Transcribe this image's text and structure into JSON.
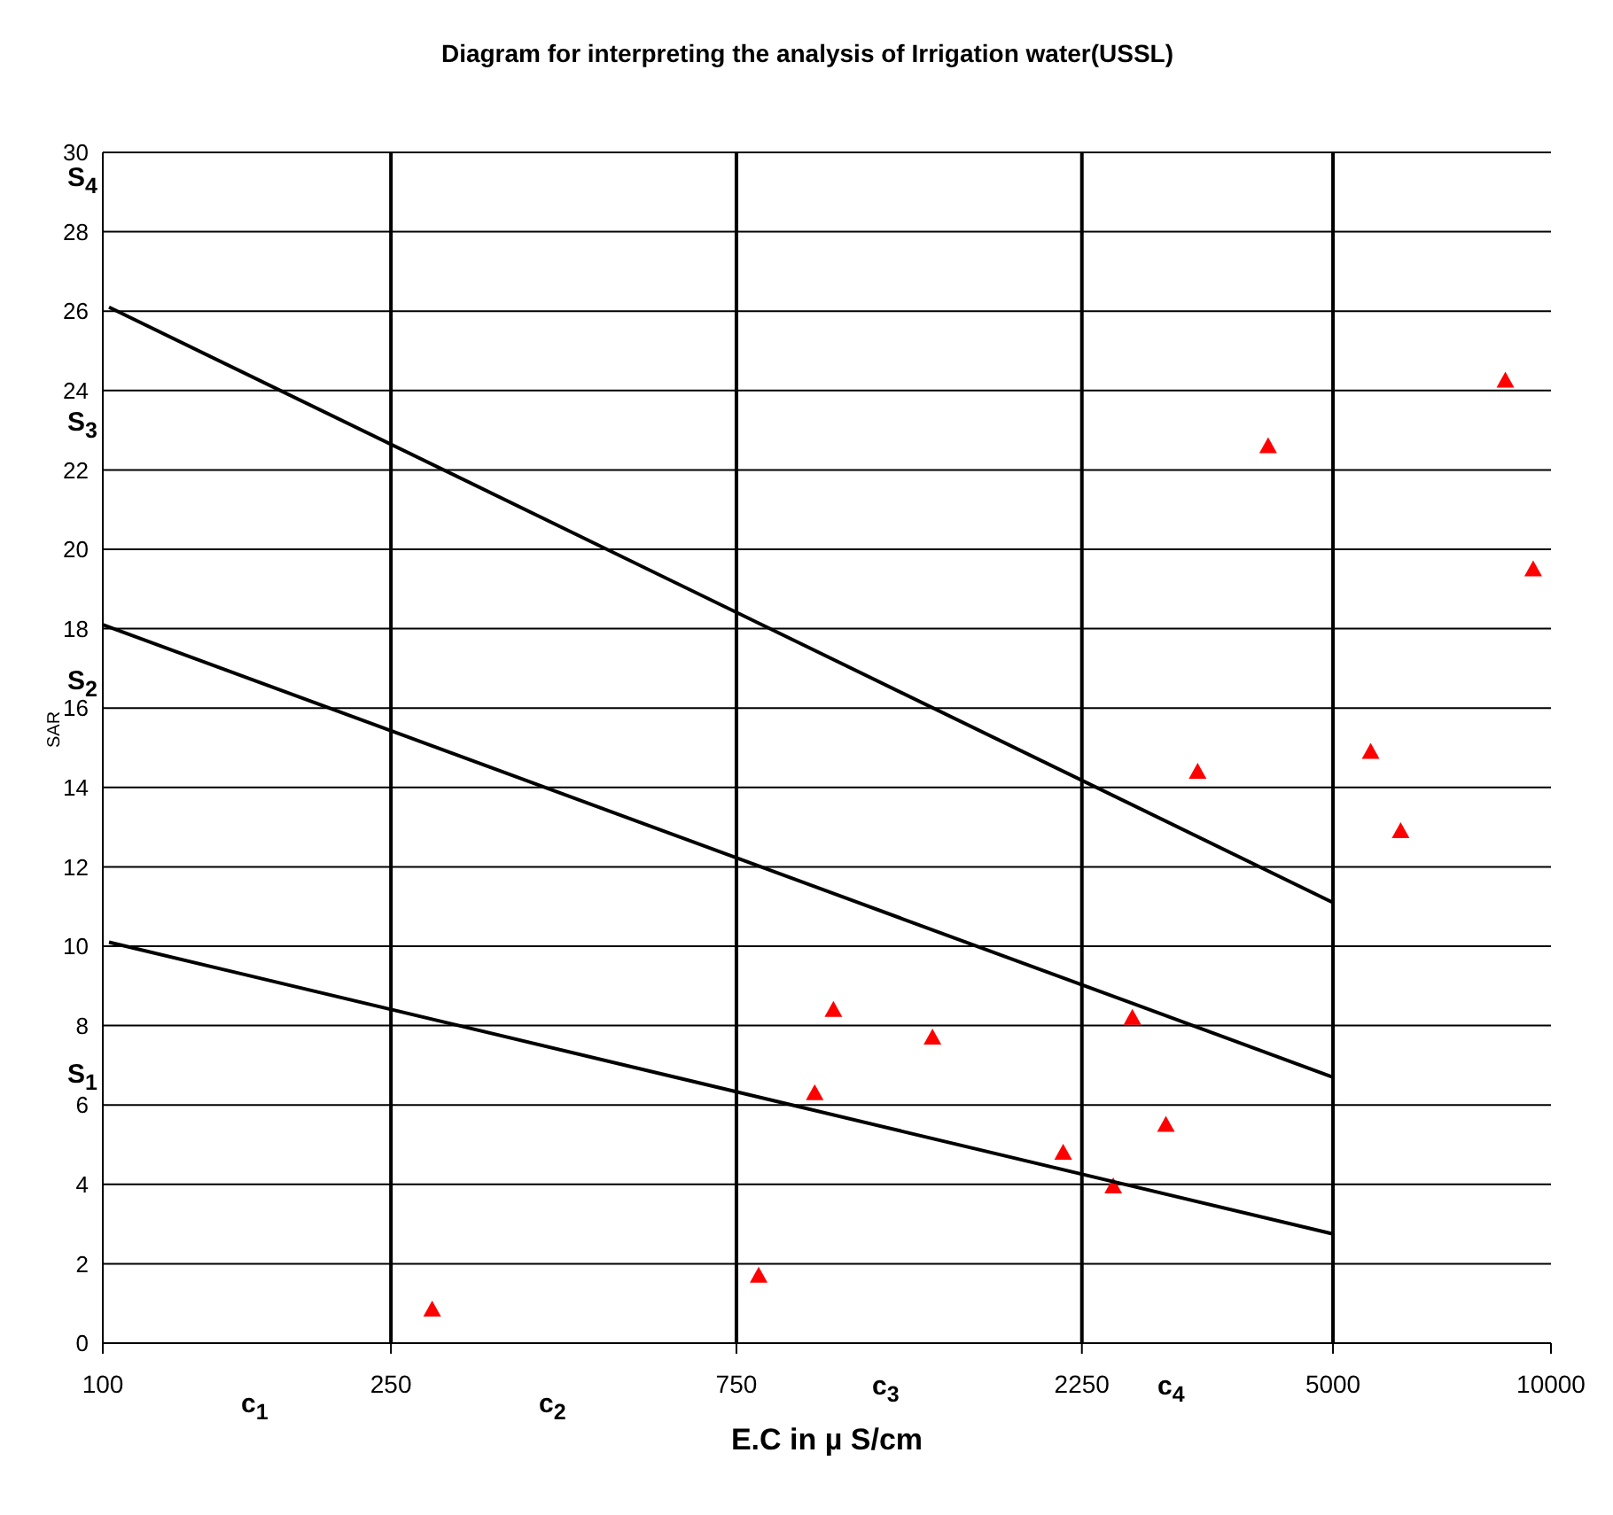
{
  "chart_data": {
    "type": "scatter",
    "title": "Diagram for interpreting the analysis of Irrigation water(USSL)",
    "xlabel": "E.C in  µ S/cm",
    "ylabel": "SAR",
    "log": "x",
    "xlim": [
      100,
      10000
    ],
    "xticks": [
      100,
      250,
      750,
      2250,
      5000,
      10000
    ],
    "ylim": [
      0,
      30
    ],
    "yticks": [
      0,
      2,
      4,
      6,
      8,
      10,
      12,
      14,
      16,
      18,
      20,
      22,
      24,
      26,
      28,
      30
    ],
    "grid": "y",
    "series": [
      {
        "marker": "triangle",
        "color": "#ff0000",
        "x": [
          285,
          805,
          962,
          1021,
          1399,
          2120,
          2486,
          2642,
          2939,
          3251,
          4068,
          5636,
          6200,
          8650,
          9450
        ],
        "values": [
          0.85,
          1.7,
          6.3,
          8.4,
          7.7,
          4.8,
          3.95,
          8.2,
          5.5,
          14.4,
          22.6,
          14.9,
          12.9,
          24.25,
          19.5
        ]
      },
      {
        "type": "line",
        "marker": "none",
        "color": "#000000",
        "x": [
          102,
          5000
        ],
        "values": [
          26.1,
          11.1
        ]
      },
      {
        "type": "line",
        "marker": "none",
        "color": "#000000",
        "x": [
          100,
          5000
        ],
        "values": [
          18.1,
          6.7
        ]
      },
      {
        "type": "line",
        "marker": "none",
        "color": "#000000",
        "x": [
          102,
          5000
        ],
        "values": [
          10.1,
          2.75
        ]
      }
    ],
    "ref_lines": [
      {
        "axis": "x",
        "value": 250,
        "color": "#000000"
      },
      {
        "axis": "x",
        "value": 750,
        "color": "#000000"
      },
      {
        "axis": "x",
        "value": 2250,
        "color": "#000000"
      },
      {
        "axis": "x",
        "value": 5000,
        "color": "#000000"
      }
    ],
    "annotations": [
      "S$_{4}$",
      "S$_{3}$",
      "S$_{2}$",
      "S$_{1}$",
      "c$_{1}$",
      "c$_{2}$",
      "c$_{3}$",
      "c$_{4}$"
    ]
  }
}
